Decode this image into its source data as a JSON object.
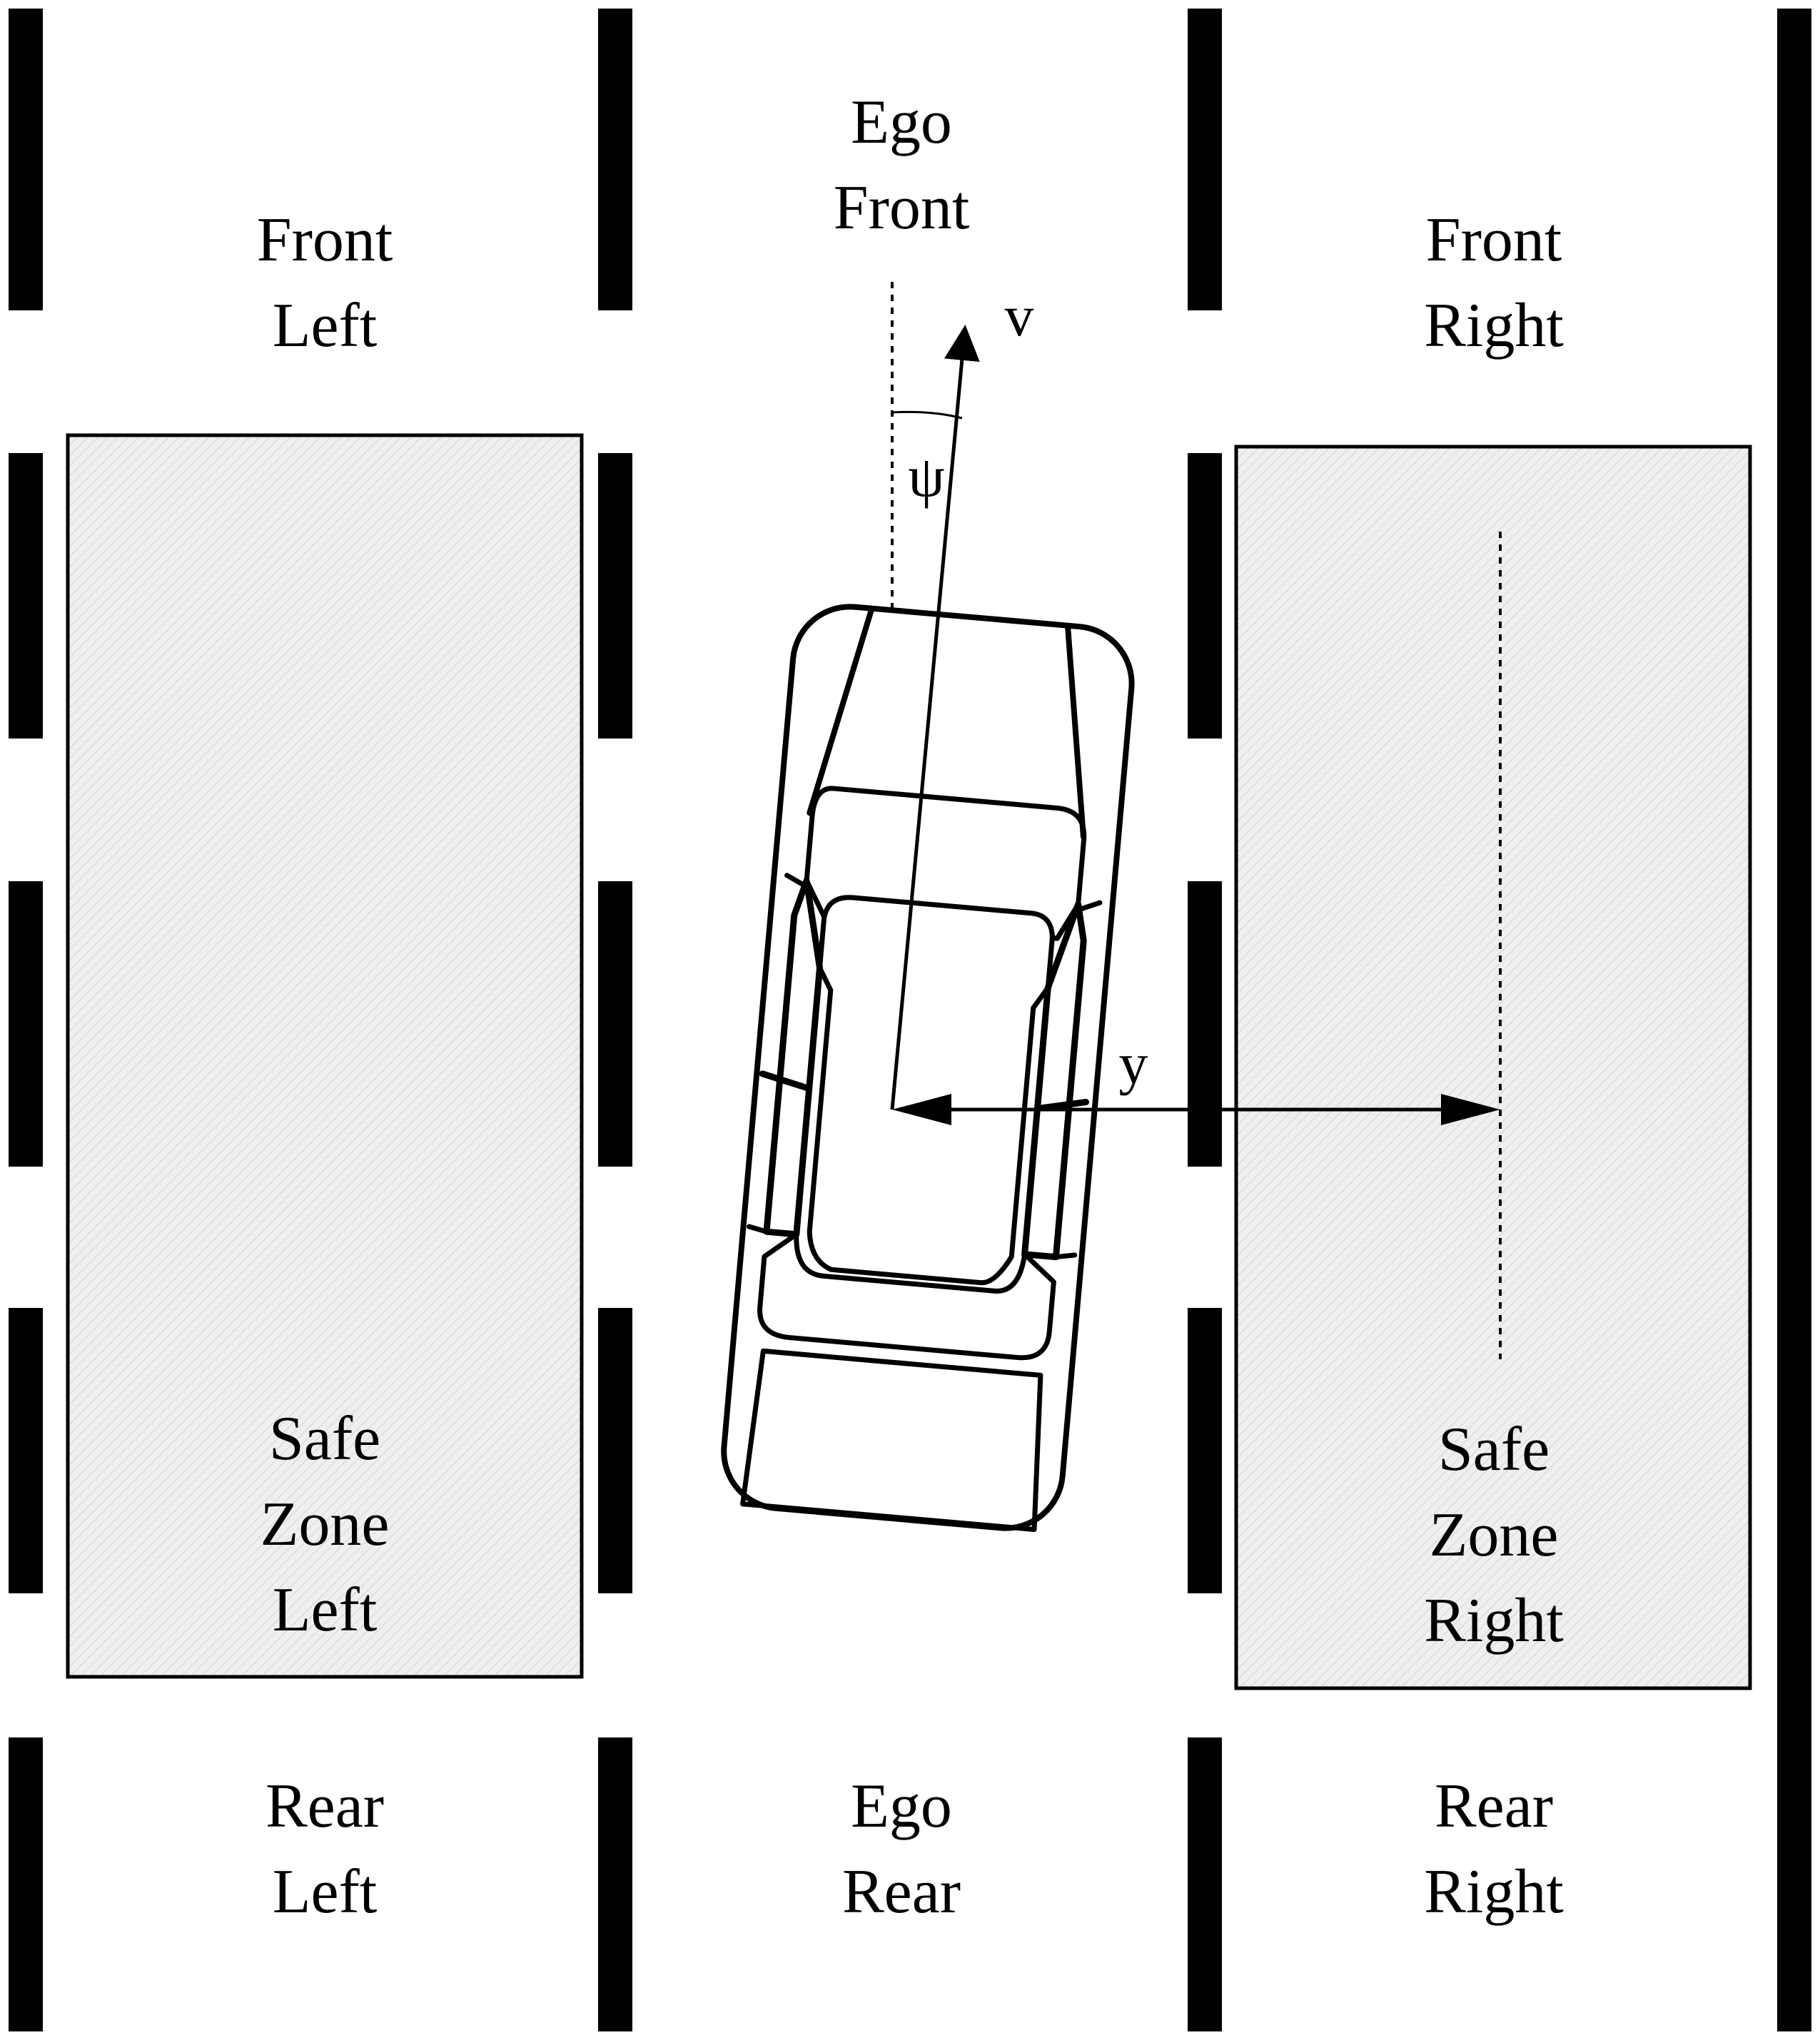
{
  "regions": {
    "front_left": [
      "Front",
      "Left"
    ],
    "ego_front": [
      "Ego",
      "Front"
    ],
    "front_right": [
      "Front",
      "Right"
    ],
    "safe_zone_left": [
      "Safe",
      "Zone",
      "Left"
    ],
    "safe_zone_right": [
      "Safe",
      "Zone",
      "Right"
    ],
    "rear_left": [
      "Rear",
      "Left"
    ],
    "ego_rear": [
      "Ego",
      "Rear"
    ],
    "rear_right": [
      "Rear",
      "Right"
    ]
  },
  "symbols": {
    "velocity": "v",
    "heading_angle": "ψ",
    "lateral_offset": "y"
  },
  "colors": {
    "lane_marking": "#000000",
    "safe_zone_fill": "#efefef",
    "safe_zone_hatch": "#cfcfcf",
    "background": "#ffffff"
  }
}
